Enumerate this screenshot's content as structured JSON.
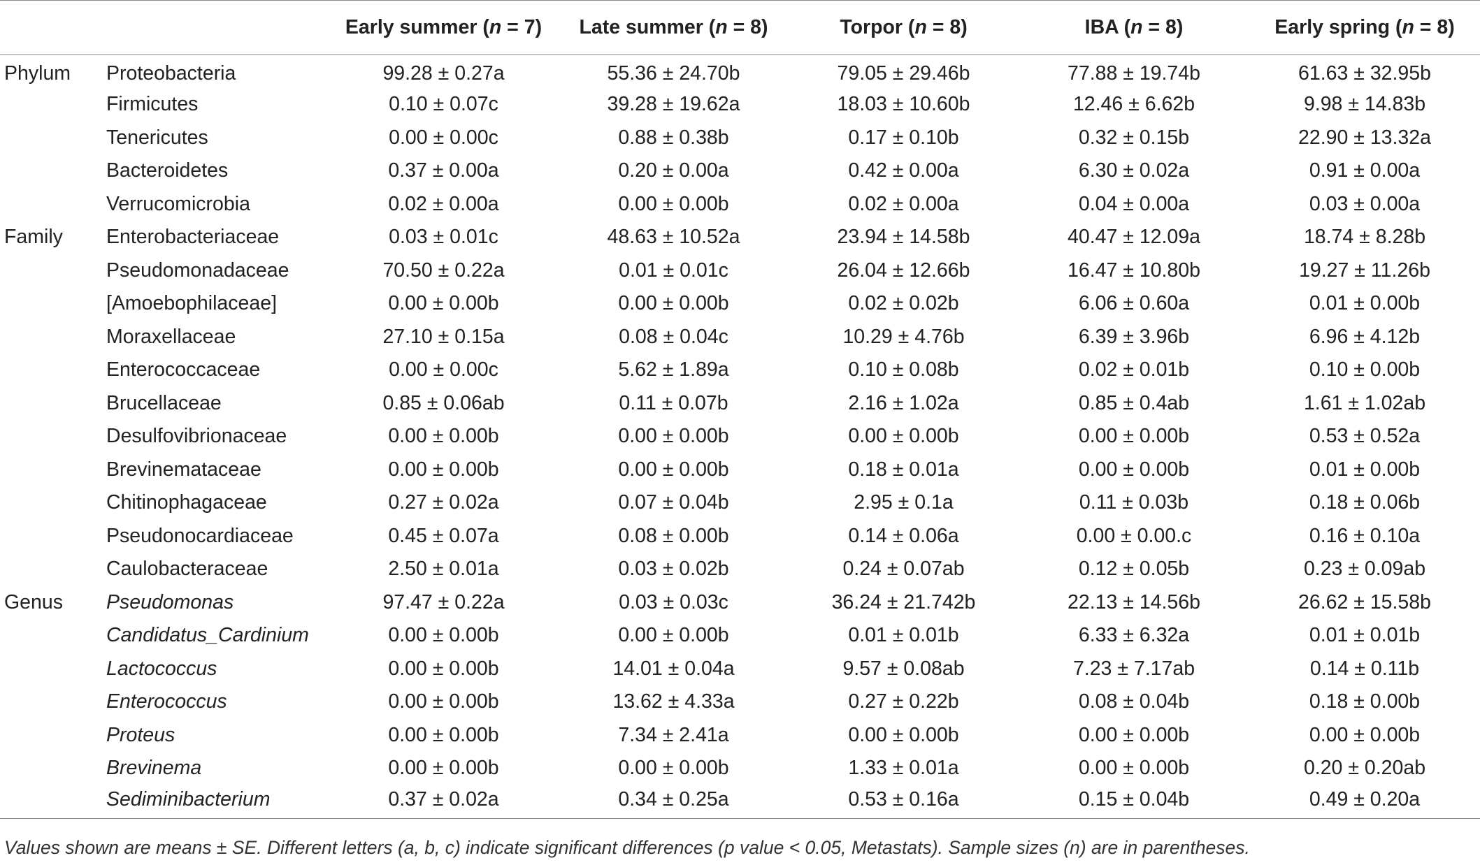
{
  "table": {
    "columns": [
      {
        "label": "",
        "n": ""
      },
      {
        "label": "",
        "n": ""
      },
      {
        "label": "Early summer (",
        "n": "n",
        "rest": " = 7)"
      },
      {
        "label": "Late summer (",
        "n": "n",
        "rest": " = 8)"
      },
      {
        "label": "Torpor (",
        "n": "n",
        "rest": " = 8)"
      },
      {
        "label": "IBA (",
        "n": "n",
        "rest": " = 8)"
      },
      {
        "label": "Early spring (",
        "n": "n",
        "rest": " = 8)"
      }
    ],
    "rows": [
      {
        "rank": "Phylum",
        "taxon": "Proteobacteria",
        "italic": false,
        "values": [
          "99.28 ± 0.27a",
          "55.36 ± 24.70b",
          "79.05 ± 29.46b",
          "77.88 ± 19.74b",
          "61.63 ± 32.95b"
        ]
      },
      {
        "rank": "",
        "taxon": "Firmicutes",
        "italic": false,
        "values": [
          "0.10 ± 0.07c",
          "39.28 ± 19.62a",
          "18.03 ± 10.60b",
          "12.46 ± 6.62b",
          "9.98 ± 14.83b"
        ]
      },
      {
        "rank": "",
        "taxon": "Tenericutes",
        "italic": false,
        "values": [
          "0.00 ± 0.00c",
          "0.88 ± 0.38b",
          "0.17 ± 0.10b",
          "0.32 ± 0.15b",
          "22.90 ± 13.32a"
        ]
      },
      {
        "rank": "",
        "taxon": "Bacteroidetes",
        "italic": false,
        "values": [
          "0.37 ± 0.00a",
          "0.20 ± 0.00a",
          "0.42 ± 0.00a",
          "6.30 ± 0.02a",
          "0.91 ± 0.00a"
        ]
      },
      {
        "rank": "",
        "taxon": "Verrucomicrobia",
        "italic": false,
        "values": [
          "0.02 ± 0.00a",
          "0.00 ± 0.00b",
          "0.02 ± 0.00a",
          "0.04 ± 0.00a",
          "0.03 ± 0.00a"
        ]
      },
      {
        "rank": "Family",
        "taxon": "Enterobacteriaceae",
        "italic": false,
        "values": [
          "0.03 ± 0.01c",
          "48.63 ± 10.52a",
          "23.94 ± 14.58b",
          "40.47 ± 12.09a",
          "18.74 ± 8.28b"
        ]
      },
      {
        "rank": "",
        "taxon": "Pseudomonadaceae",
        "italic": false,
        "values": [
          "70.50 ± 0.22a",
          "0.01 ± 0.01c",
          "26.04 ± 12.66b",
          "16.47 ± 10.80b",
          "19.27 ± 11.26b"
        ]
      },
      {
        "rank": "",
        "taxon": "[Amoebophilaceae]",
        "italic": false,
        "values": [
          "0.00 ± 0.00b",
          "0.00 ± 0.00b",
          "0.02 ± 0.02b",
          "6.06 ± 0.60a",
          "0.01 ± 0.00b"
        ]
      },
      {
        "rank": "",
        "taxon": "Moraxellaceae",
        "italic": false,
        "values": [
          "27.10 ± 0.15a",
          "0.08 ± 0.04c",
          "10.29 ± 4.76b",
          "6.39 ± 3.96b",
          "6.96 ± 4.12b"
        ]
      },
      {
        "rank": "",
        "taxon": "Enterococcaceae",
        "italic": false,
        "values": [
          "0.00 ± 0.00c",
          "5.62 ± 1.89a",
          "0.10 ± 0.08b",
          "0.02 ± 0.01b",
          "0.10 ± 0.00b"
        ]
      },
      {
        "rank": "",
        "taxon": "Brucellaceae",
        "italic": false,
        "values": [
          "0.85 ± 0.06ab",
          "0.11 ± 0.07b",
          "2.16 ± 1.02a",
          "0.85 ± 0.4ab",
          "1.61 ± 1.02ab"
        ]
      },
      {
        "rank": "",
        "taxon": "Desulfovibrionaceae",
        "italic": false,
        "values": [
          "0.00 ± 0.00b",
          "0.00 ± 0.00b",
          "0.00 ± 0.00b",
          "0.00 ± 0.00b",
          "0.53 ± 0.52a"
        ]
      },
      {
        "rank": "",
        "taxon": "Brevinemataceae",
        "italic": false,
        "values": [
          "0.00 ± 0.00b",
          "0.00 ± 0.00b",
          "0.18 ± 0.01a",
          "0.00 ± 0.00b",
          "0.01 ± 0.00b"
        ]
      },
      {
        "rank": "",
        "taxon": "Chitinophagaceae",
        "italic": false,
        "values": [
          "0.27 ± 0.02a",
          "0.07 ± 0.04b",
          "2.95 ± 0.1a",
          "0.11 ± 0.03b",
          "0.18 ± 0.06b"
        ]
      },
      {
        "rank": "",
        "taxon": "Pseudonocardiaceae",
        "italic": false,
        "values": [
          "0.45 ± 0.07a",
          "0.08 ± 0.00b",
          "0.14 ± 0.06a",
          "0.00 ± 0.00.c",
          "0.16 ± 0.10a"
        ]
      },
      {
        "rank": "",
        "taxon": "Caulobacteraceae",
        "italic": false,
        "values": [
          "2.50 ± 0.01a",
          "0.03 ± 0.02b",
          "0.24 ± 0.07ab",
          "0.12 ± 0.05b",
          "0.23 ± 0.09ab"
        ]
      },
      {
        "rank": "Genus",
        "taxon": "Pseudomonas",
        "italic": true,
        "values": [
          "97.47 ± 0.22a",
          "0.03 ± 0.03c",
          "36.24 ± 21.742b",
          "22.13 ± 14.56b",
          "26.62 ± 15.58b"
        ]
      },
      {
        "rank": "",
        "taxon": "Candidatus_Cardinium",
        "italic": true,
        "values": [
          "0.00 ± 0.00b",
          "0.00 ± 0.00b",
          "0.01 ± 0.01b",
          "6.33 ± 6.32a",
          "0.01 ± 0.01b"
        ]
      },
      {
        "rank": "",
        "taxon": "Lactococcus",
        "italic": true,
        "values": [
          "0.00 ± 0.00b",
          "14.01 ± 0.04a",
          "9.57 ± 0.08ab",
          "7.23 ± 7.17ab",
          "0.14 ± 0.11b"
        ]
      },
      {
        "rank": "",
        "taxon": "Enterococcus",
        "italic": true,
        "values": [
          "0.00 ± 0.00b",
          "13.62 ± 4.33a",
          "0.27 ± 0.22b",
          "0.08 ± 0.04b",
          "0.18 ± 0.00b"
        ]
      },
      {
        "rank": "",
        "taxon": "Proteus",
        "italic": true,
        "values": [
          "0.00 ± 0.00b",
          "7.34 ± 2.41a",
          "0.00 ± 0.00b",
          "0.00 ± 0.00b",
          "0.00 ± 0.00b"
        ]
      },
      {
        "rank": "",
        "taxon": "Brevinema",
        "italic": true,
        "values": [
          "0.00 ± 0.00b",
          "0.00 ± 0.00b",
          "1.33 ± 0.01a",
          "0.00 ± 0.00b",
          "0.20 ± 0.20ab"
        ]
      },
      {
        "rank": "",
        "taxon": "Sediminibacterium",
        "italic": true,
        "values": [
          "0.37 ± 0.02a",
          "0.34 ± 0.25a",
          "0.53 ± 0.16a",
          "0.15 ± 0.04b",
          "0.49 ± 0.20a"
        ]
      }
    ]
  },
  "footnote": "Values shown are means ± SE. Different letters (a, b, c) indicate significant differences (p value < 0.05, Metastats). Sample sizes (n) are in parentheses."
}
